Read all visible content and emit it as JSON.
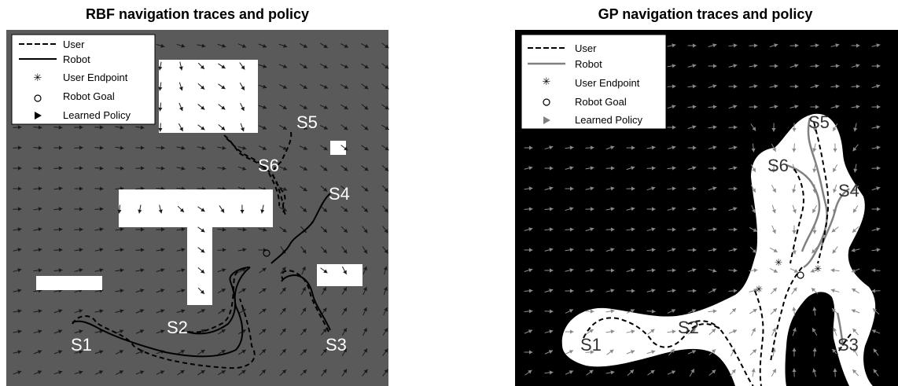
{
  "chart_data": [
    {
      "type": "vector-field",
      "title": "RBF navigation traces and policy",
      "colors": {
        "background": "#5a5a5a",
        "obstacle": "#ffffff",
        "arrow": "#1a1a1a",
        "user": "#000000",
        "robot": "#000000"
      },
      "legend": [
        {
          "label": "User",
          "style": "dashed"
        },
        {
          "label": "Robot",
          "style": "solid"
        },
        {
          "label": "User Endpoint",
          "style": "star"
        },
        {
          "label": "Robot Goal",
          "style": "circle"
        },
        {
          "label": "Learned Policy",
          "style": "triangle"
        }
      ],
      "start_labels": [
        "S1",
        "S2",
        "S3",
        "S4",
        "S5",
        "S6"
      ]
    },
    {
      "type": "vector-field",
      "title": "GP navigation traces and policy",
      "colors": {
        "background": "#000000",
        "free_space": "#ffffff",
        "arrow": "#8a8a8a",
        "user": "#000000",
        "robot": "#808080"
      },
      "legend": [
        {
          "label": "User",
          "style": "dashed"
        },
        {
          "label": "Robot",
          "style": "solid"
        },
        {
          "label": "User Endpoint",
          "style": "star"
        },
        {
          "label": "Robot Goal",
          "style": "circle"
        },
        {
          "label": "Learned Policy",
          "style": "triangle"
        }
      ],
      "start_labels": [
        "S1",
        "S2",
        "S3",
        "S4",
        "S5",
        "S6"
      ]
    }
  ]
}
